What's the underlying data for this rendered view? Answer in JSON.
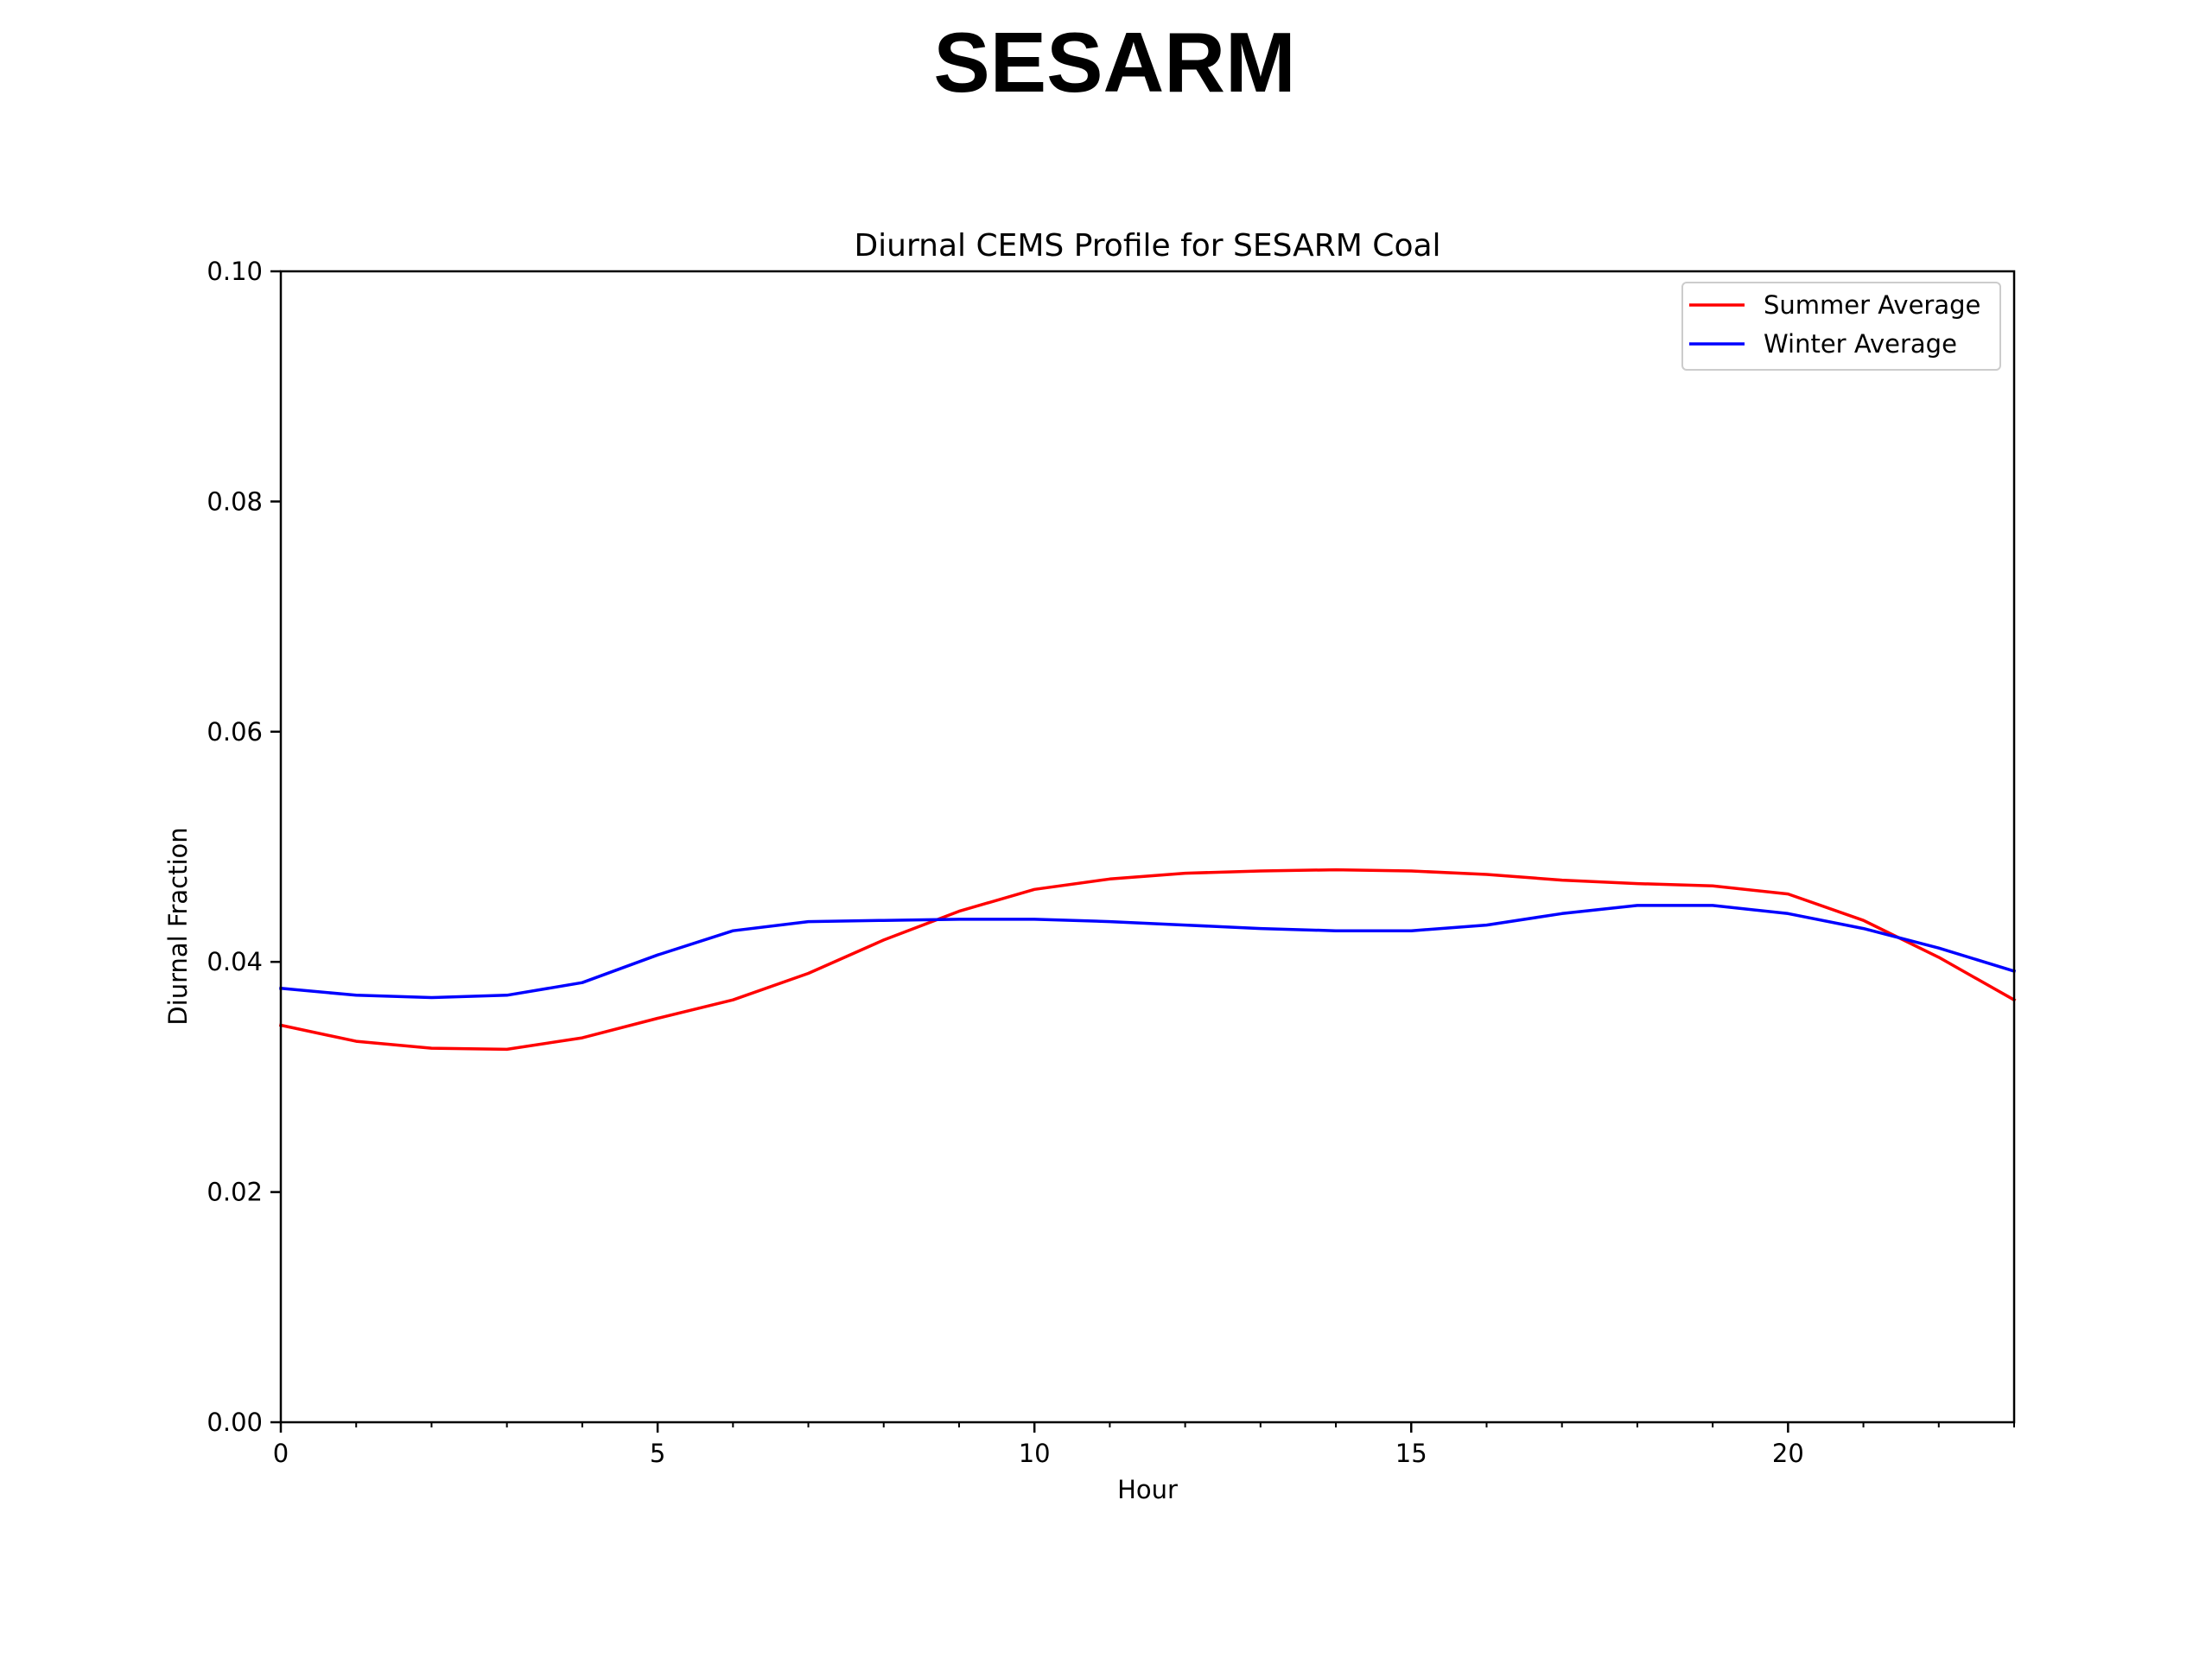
{
  "page": {
    "title": "SESARM"
  },
  "chart_data": {
    "type": "line",
    "title": "Diurnal CEMS Profile for SESARM Coal",
    "xlabel": "Hour",
    "ylabel": "Diurnal Fraction",
    "xlim": [
      0,
      23
    ],
    "ylim": [
      0,
      0.1
    ],
    "x_ticks": [
      0,
      5,
      10,
      15,
      20
    ],
    "x_tick_labels": [
      "0",
      "5",
      "10",
      "15",
      "20"
    ],
    "x_minor_ticks": [
      1,
      2,
      3,
      4,
      6,
      7,
      8,
      9,
      11,
      12,
      13,
      14,
      16,
      17,
      18,
      19,
      21,
      22,
      23
    ],
    "y_ticks": [
      0,
      0.02,
      0.04,
      0.06,
      0.08,
      0.1
    ],
    "y_tick_labels": [
      "0.00",
      "0.02",
      "0.04",
      "0.06",
      "0.08",
      "0.10"
    ],
    "grid": false,
    "legend_position": "top-right",
    "x": [
      0,
      1,
      2,
      3,
      4,
      5,
      6,
      7,
      8,
      9,
      10,
      11,
      12,
      13,
      14,
      15,
      16,
      17,
      18,
      19,
      20,
      21,
      22,
      23
    ],
    "series": [
      {
        "name": "Summer Average",
        "color": "#ff0000",
        "values": [
          0.0345,
          0.0331,
          0.0325,
          0.0324,
          0.0334,
          0.0351,
          0.0367,
          0.039,
          0.0419,
          0.0444,
          0.0463,
          0.0472,
          0.0477,
          0.0479,
          0.048,
          0.0479,
          0.0476,
          0.0471,
          0.0468,
          0.0466,
          0.0459,
          0.0436,
          0.0404,
          0.0367
        ]
      },
      {
        "name": "Winter Average",
        "color": "#0000ff",
        "values": [
          0.0377,
          0.0371,
          0.0369,
          0.0371,
          0.0382,
          0.0406,
          0.0427,
          0.0435,
          0.0436,
          0.0437,
          0.0437,
          0.0435,
          0.0432,
          0.0429,
          0.0427,
          0.0427,
          0.0432,
          0.0442,
          0.0449,
          0.0449,
          0.0442,
          0.0429,
          0.0412,
          0.0392
        ]
      }
    ]
  }
}
